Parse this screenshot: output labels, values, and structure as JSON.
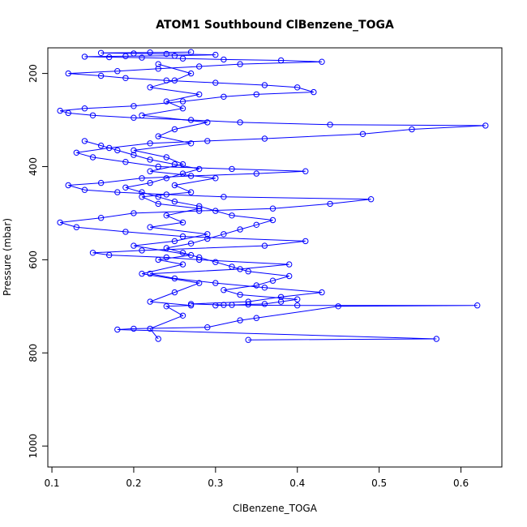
{
  "chart_data": {
    "type": "scatter",
    "title": "ATOM1 Southbound ClBenzene_TOGA",
    "xlabel": "ClBenzene_TOGA",
    "ylabel": "Pressure (mbar)",
    "xlim": [
      0.095,
      0.65
    ],
    "ylim": [
      1045,
      145
    ],
    "y_inverted": true,
    "x_ticks": [
      0.1,
      0.2,
      0.3,
      0.4,
      0.5,
      0.6
    ],
    "x_tick_labels": [
      "0.1",
      "0.2",
      "0.3",
      "0.4",
      "0.5",
      "0.6"
    ],
    "y_ticks": [
      200,
      400,
      600,
      800,
      1000
    ],
    "y_tick_labels": [
      "200",
      "400",
      "600",
      "800",
      "1000"
    ],
    "grid": false,
    "color": "#0000ff",
    "marker": "open-circle",
    "series": [
      {
        "x": [
          0.23,
          0.22,
          0.26,
          0.24,
          0.27,
          0.22,
          0.25,
          0.28,
          0.21,
          0.26,
          0.23,
          0.27,
          0.2,
          0.25,
          0.29,
          0.22,
          0.26,
          0.24,
          0.28,
          0.23,
          0.21,
          0.27,
          0.25,
          0.3,
          0.22,
          0.26,
          0.24,
          0.2,
          0.27,
          0.23,
          0.25,
          0.29,
          0.21,
          0.26,
          0.24,
          0.28,
          0.22,
          0.25,
          0.27,
          0.23
        ],
        "y": [
          770,
          748,
          720,
          700,
          698,
          690,
          670,
          650,
          630,
          610,
          600,
          590,
          570,
          560,
          545,
          530,
          520,
          505,
          490,
          480,
          465,
          455,
          440,
          425,
          410,
          395,
          380,
          365,
          350,
          335,
          320,
          305,
          290,
          275,
          260,
          245,
          230,
          215,
          200,
          180
        ]
      },
      {
        "x": [
          0.34,
          0.57,
          0.18,
          0.2,
          0.29,
          0.33,
          0.35,
          0.45,
          0.62,
          0.4,
          0.31,
          0.27,
          0.34,
          0.38,
          0.43,
          0.36,
          0.3,
          0.25,
          0.22,
          0.33,
          0.39,
          0.28,
          0.24,
          0.17,
          0.15,
          0.21,
          0.36,
          0.41,
          0.26,
          0.19,
          0.13,
          0.11,
          0.16,
          0.2,
          0.28,
          0.37,
          0.44,
          0.49,
          0.31,
          0.24,
          0.18,
          0.14,
          0.12,
          0.16,
          0.21,
          0.27,
          0.35,
          0.41,
          0.32,
          0.23,
          0.19,
          0.15,
          0.13,
          0.17,
          0.22,
          0.29,
          0.36,
          0.48,
          0.54,
          0.63,
          0.44,
          0.33,
          0.27,
          0.2,
          0.15,
          0.12,
          0.11,
          0.14,
          0.2,
          0.26,
          0.31,
          0.35,
          0.42,
          0.4,
          0.36,
          0.3,
          0.24,
          0.19,
          0.16,
          0.12,
          0.18,
          0.23,
          0.28,
          0.33,
          0.43,
          0.38,
          0.31,
          0.26,
          0.21,
          0.17,
          0.14,
          0.19,
          0.25,
          0.3,
          0.24,
          0.2,
          0.16,
          0.22,
          0.27
        ],
        "y": [
          772,
          770,
          750,
          748,
          745,
          730,
          725,
          700,
          698,
          698,
          697,
          695,
          690,
          680,
          670,
          660,
          650,
          640,
          630,
          620,
          610,
          600,
          595,
          590,
          585,
          580,
          570,
          560,
          550,
          540,
          530,
          520,
          510,
          500,
          495,
          490,
          480,
          470,
          465,
          460,
          455,
          450,
          440,
          435,
          425,
          420,
          415,
          410,
          405,
          400,
          390,
          380,
          370,
          360,
          350,
          345,
          340,
          330,
          320,
          312,
          310,
          305,
          300,
          295,
          290,
          285,
          280,
          275,
          270,
          260,
          250,
          245,
          240,
          230,
          225,
          220,
          215,
          210,
          205,
          200,
          195,
          190,
          185,
          180,
          175,
          172,
          170,
          168,
          166,
          165,
          164,
          163,
          162,
          160,
          158,
          157,
          156,
          155,
          154
        ]
      },
      {
        "x": [
          0.3,
          0.32,
          0.34,
          0.36,
          0.38,
          0.4,
          0.33,
          0.31,
          0.35,
          0.37,
          0.39,
          0.34,
          0.32,
          0.3,
          0.28,
          0.26,
          0.24,
          0.27,
          0.29,
          0.31,
          0.33,
          0.35,
          0.37,
          0.32,
          0.3,
          0.28,
          0.25,
          0.23,
          0.21,
          0.19,
          0.22,
          0.24,
          0.26,
          0.28,
          0.25,
          0.22,
          0.2,
          0.18,
          0.16,
          0.14
        ],
        "y": [
          698,
          697,
          696,
          695,
          690,
          685,
          675,
          665,
          655,
          645,
          635,
          625,
          615,
          605,
          595,
          585,
          575,
          565,
          555,
          545,
          535,
          525,
          515,
          505,
          495,
          485,
          475,
          465,
          455,
          445,
          435,
          425,
          415,
          405,
          395,
          385,
          375,
          365,
          355,
          345
        ]
      }
    ]
  }
}
